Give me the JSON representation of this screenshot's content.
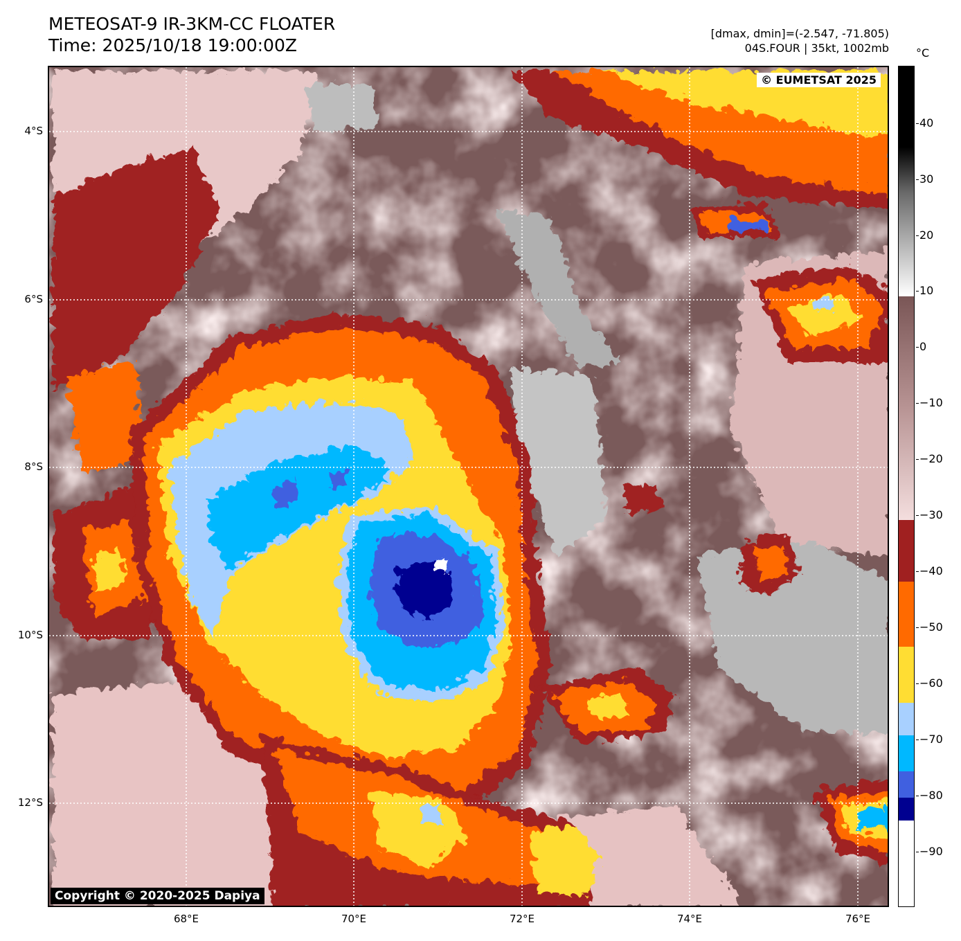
{
  "header": {
    "title": "METEOSAT-9 IR-3KM-CC FLOATER",
    "time": "Time: 2025/10/18 19:00:00Z",
    "range": "[dmax, dmin]=(-2.547, -71.805)",
    "storm": "04S.FOUR | 35kt, 1002mb"
  },
  "map": {
    "eumetsat_credit": "© EUMETSAT 2025",
    "dapiya_credit": "Copyright © 2020-2025 Dapiya",
    "lat_labels": [
      "4°S",
      "6°S",
      "8°S",
      "10°S",
      "12°S"
    ],
    "lon_labels": [
      "68°E",
      "70°E",
      "72°E",
      "74°E",
      "76°E"
    ],
    "background_color": "#7a5a5a"
  },
  "colorbar": {
    "unit": "°C",
    "labels": [
      "40",
      "30",
      "20",
      "10",
      "0",
      "−10",
      "−20",
      "−30",
      "−40",
      "−50",
      "−60",
      "−70",
      "−80",
      "−90"
    ],
    "colors": {
      "warm_top": "#000000",
      "gray_mid": "#8a8a8a",
      "white_10": "#ffffff",
      "brown_8": "#7a5656",
      "pink_m30": "#f0d4d4",
      "dark_red": "#a02020",
      "orange": "#ff6a00",
      "yellow": "#ffdd33",
      "light_blue": "#a8d0ff",
      "cyan": "#00b8ff",
      "royal_blue": "#4060e0",
      "navy": "#000090",
      "cold_white": "#ffffff"
    }
  }
}
